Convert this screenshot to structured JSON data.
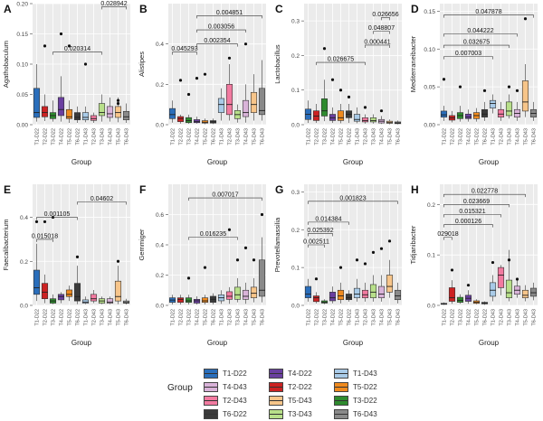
{
  "groups": [
    "T1-D22",
    "T2-D22",
    "T3-D22",
    "T4-D22",
    "T5-D22",
    "T6-D22",
    "T1-D43",
    "T2-D43",
    "T3-D43",
    "T4-D43",
    "T5-D43",
    "T6-D43"
  ],
  "group_colors": [
    "#2a6ebb",
    "#cc2222",
    "#2e8b2e",
    "#6a3fa0",
    "#ef8a1e",
    "#3a3a3a",
    "#a9cbe8",
    "#f27aa0",
    "#b8e08a",
    "#d9b3d9",
    "#f7c58a",
    "#8a8a8a"
  ],
  "legend": {
    "title": "Group",
    "items": [
      "T1-D22",
      "T4-D22",
      "T1-D43",
      "T4-D43",
      "T2-D22",
      "T5-D22",
      "T2-D43",
      "T5-D43",
      "T3-D22",
      "T6-D22",
      "T3-D43",
      "T6-D43"
    ],
    "item_colors": [
      "#2a6ebb",
      "#6a3fa0",
      "#a9cbe8",
      "#d9b3d9",
      "#cc2222",
      "#ef8a1e",
      "#f27aa0",
      "#f7c58a",
      "#2e8b2e",
      "#3a3a3a",
      "#b8e08a",
      "#8a8a8a"
    ]
  },
  "chart_data": [
    {
      "type": "box",
      "letter": "A",
      "ylabel": "Agathobaculum",
      "xlabel": "Group",
      "ylim": [
        0,
        0.2
      ],
      "yticks": [
        0,
        0.05,
        0.1,
        0.15,
        0.2
      ],
      "ytick_labels": [
        "0.00",
        "0.05",
        "0.10",
        "0.15",
        "0.20"
      ],
      "boxes": [
        [
          0.005,
          0.012,
          0.02,
          0.06,
          0.1
        ],
        [
          0.006,
          0.013,
          0.02,
          0.03,
          0.05
        ],
        [
          0.005,
          0.01,
          0.015,
          0.02,
          0.04
        ],
        [
          0.005,
          0.015,
          0.025,
          0.045,
          0.08
        ],
        [
          0.003,
          0.01,
          0.013,
          0.025,
          0.04
        ],
        [
          0.003,
          0.008,
          0.012,
          0.02,
          0.03
        ],
        [
          0.004,
          0.008,
          0.012,
          0.02,
          0.03
        ],
        [
          0.003,
          0.007,
          0.01,
          0.015,
          0.02
        ],
        [
          0.005,
          0.015,
          0.02,
          0.035,
          0.05
        ],
        [
          0.005,
          0.012,
          0.018,
          0.03,
          0.045
        ],
        [
          0.004,
          0.012,
          0.02,
          0.03,
          0.045
        ],
        [
          0.003,
          0.008,
          0.013,
          0.022,
          0.035
        ]
      ],
      "outliers": [
        [
          1,
          0.13
        ],
        [
          3,
          0.15
        ],
        [
          4,
          0.13
        ],
        [
          6,
          0.1
        ],
        [
          10,
          0.04
        ],
        [
          10,
          0.035
        ]
      ],
      "annotations": [
        {
          "label": "0.020314",
          "from": 2,
          "to": 8,
          "y": 0.12
        },
        {
          "label": "0.028942",
          "from": 8,
          "to": 11,
          "y": 0.195
        }
      ]
    },
    {
      "type": "box",
      "letter": "B",
      "ylabel": "Alistipes",
      "xlabel": "Group",
      "ylim": [
        0,
        0.6
      ],
      "yticks": [
        0,
        0.2,
        0.4
      ],
      "ytick_labels": [
        "0.0",
        "0.2",
        "0.4"
      ],
      "boxes": [
        [
          0.01,
          0.03,
          0.05,
          0.08,
          0.12
        ],
        [
          0.005,
          0.015,
          0.03,
          0.04,
          0.05
        ],
        [
          0.004,
          0.01,
          0.02,
          0.035,
          0.05
        ],
        [
          0.005,
          0.01,
          0.015,
          0.025,
          0.04
        ],
        [
          0.002,
          0.008,
          0.012,
          0.02,
          0.03
        ],
        [
          0.003,
          0.008,
          0.014,
          0.02,
          0.03
        ],
        [
          0.02,
          0.06,
          0.1,
          0.13,
          0.18
        ],
        [
          0.02,
          0.05,
          0.1,
          0.2,
          0.3
        ],
        [
          0.01,
          0.03,
          0.05,
          0.07,
          0.1
        ],
        [
          0.01,
          0.04,
          0.06,
          0.12,
          0.2
        ],
        [
          0.02,
          0.06,
          0.1,
          0.16,
          0.25
        ],
        [
          0.02,
          0.05,
          0.07,
          0.18,
          0.32
        ]
      ],
      "outliers": [
        [
          1,
          0.22
        ],
        [
          2,
          0.15
        ],
        [
          3,
          0.23
        ],
        [
          4,
          0.25
        ],
        [
          7,
          0.33
        ],
        [
          9,
          0.4
        ]
      ],
      "annotations": [
        {
          "label": "0.045293",
          "from": 0,
          "to": 3,
          "y": 0.36
        },
        {
          "label": "0.002354",
          "from": 3,
          "to": 8,
          "y": 0.4
        },
        {
          "label": "0.003056",
          "from": 3,
          "to": 9,
          "y": 0.47
        },
        {
          "label": "0.004851",
          "from": 3,
          "to": 11,
          "y": 0.54
        }
      ]
    },
    {
      "type": "box",
      "letter": "C",
      "ylabel": "Lactobacillus",
      "xlabel": "Group",
      "ylim": [
        0,
        0.35
      ],
      "yticks": [
        0,
        0.1,
        0.2,
        0.3
      ],
      "ytick_labels": [
        "0.0",
        "0.1",
        "0.2",
        "0.3"
      ],
      "boxes": [
        [
          0.005,
          0.015,
          0.03,
          0.045,
          0.07
        ],
        [
          0.005,
          0.012,
          0.025,
          0.04,
          0.06
        ],
        [
          0.01,
          0.025,
          0.04,
          0.075,
          0.13
        ],
        [
          0.005,
          0.012,
          0.02,
          0.03,
          0.05
        ],
        [
          0.004,
          0.012,
          0.02,
          0.04,
          0.06
        ],
        [
          0.005,
          0.02,
          0.03,
          0.04,
          0.06
        ],
        [
          0.004,
          0.01,
          0.015,
          0.03,
          0.05
        ],
        [
          0.003,
          0.008,
          0.012,
          0.02,
          0.03
        ],
        [
          0.003,
          0.008,
          0.012,
          0.02,
          0.03
        ],
        [
          0.002,
          0.005,
          0.01,
          0.015,
          0.025
        ],
        [
          0.001,
          0.004,
          0.006,
          0.01,
          0.015
        ],
        [
          0.001,
          0.003,
          0.005,
          0.008,
          0.012
        ]
      ],
      "outliers": [
        [
          2,
          0.22
        ],
        [
          3,
          0.13
        ],
        [
          4,
          0.1
        ],
        [
          5,
          0.08
        ],
        [
          7,
          0.05
        ],
        [
          9,
          0.04
        ]
      ],
      "annotations": [
        {
          "label": "0.026675",
          "from": 1,
          "to": 7,
          "y": 0.18
        },
        {
          "label": "0.000441",
          "from": 7,
          "to": 10,
          "y": 0.23
        },
        {
          "label": "0.048807",
          "from": 8,
          "to": 10,
          "y": 0.27
        },
        {
          "label": "0.026656",
          "from": 9,
          "to": 10,
          "y": 0.31
        }
      ]
    },
    {
      "type": "box",
      "letter": "D",
      "ylabel": "Mediterraneibacter",
      "xlabel": "Group",
      "ylim": [
        0,
        0.16
      ],
      "yticks": [
        0,
        0.05,
        0.1,
        0.15
      ],
      "ytick_labels": [
        "0.00",
        "0.05",
        "0.10",
        "0.15"
      ],
      "boxes": [
        [
          0.005,
          0.01,
          0.013,
          0.018,
          0.025
        ],
        [
          0.003,
          0.006,
          0.009,
          0.012,
          0.018
        ],
        [
          0.004,
          0.008,
          0.012,
          0.016,
          0.025
        ],
        [
          0.004,
          0.008,
          0.01,
          0.014,
          0.02
        ],
        [
          0.004,
          0.008,
          0.012,
          0.016,
          0.022
        ],
        [
          0.005,
          0.01,
          0.014,
          0.02,
          0.03
        ],
        [
          0.015,
          0.022,
          0.028,
          0.032,
          0.04
        ],
        [
          0.005,
          0.01,
          0.014,
          0.02,
          0.03
        ],
        [
          0.008,
          0.012,
          0.018,
          0.03,
          0.04
        ],
        [
          0.005,
          0.01,
          0.015,
          0.02,
          0.03
        ],
        [
          0.01,
          0.018,
          0.03,
          0.058,
          0.08
        ],
        [
          0.005,
          0.01,
          0.015,
          0.02,
          0.03
        ]
      ],
      "outliers": [
        [
          0,
          0.06
        ],
        [
          2,
          0.05
        ],
        [
          5,
          0.045
        ],
        [
          8,
          0.05
        ],
        [
          9,
          0.045
        ],
        [
          10,
          0.14
        ]
      ],
      "annotations": [
        {
          "label": "0.007003",
          "from": 0,
          "to": 6,
          "y": 0.09
        },
        {
          "label": "0.032675",
          "from": 0,
          "to": 8,
          "y": 0.105
        },
        {
          "label": "0.044222",
          "from": 0,
          "to": 9,
          "y": 0.12
        },
        {
          "label": "0.047878",
          "from": 0,
          "to": 11,
          "y": 0.145
        }
      ]
    },
    {
      "type": "box",
      "letter": "E",
      "ylabel": "Faecalibacterium",
      "xlabel": "Group",
      "ylim": [
        0,
        0.55
      ],
      "yticks": [
        0,
        0.2,
        0.4
      ],
      "ytick_labels": [
        "0.0",
        "0.2",
        "0.4"
      ],
      "boxes": [
        [
          0.02,
          0.05,
          0.08,
          0.16,
          0.28
        ],
        [
          0.01,
          0.03,
          0.06,
          0.1,
          0.14
        ],
        [
          0.005,
          0.01,
          0.02,
          0.03,
          0.05
        ],
        [
          0.01,
          0.025,
          0.04,
          0.05,
          0.06
        ],
        [
          0.02,
          0.04,
          0.05,
          0.07,
          0.09
        ],
        [
          0.005,
          0.02,
          0.04,
          0.1,
          0.18
        ],
        [
          0.005,
          0.01,
          0.015,
          0.025,
          0.04
        ],
        [
          0.01,
          0.02,
          0.03,
          0.05,
          0.07
        ],
        [
          0.005,
          0.01,
          0.02,
          0.03,
          0.04
        ],
        [
          0.005,
          0.01,
          0.015,
          0.03,
          0.04
        ],
        [
          0.005,
          0.02,
          0.04,
          0.11,
          0.18
        ],
        [
          0.004,
          0.01,
          0.012,
          0.02,
          0.03
        ]
      ],
      "outliers": [
        [
          0,
          0.38
        ],
        [
          1,
          0.38
        ],
        [
          2,
          0.4
        ],
        [
          5,
          0.22
        ],
        [
          10,
          0.2
        ]
      ],
      "annotations": [
        {
          "label": "0.015018",
          "from": 0,
          "to": 2,
          "y": 0.3
        },
        {
          "label": "0.001105",
          "from": 0,
          "to": 5,
          "y": 0.4
        },
        {
          "label": "0.04602",
          "from": 5,
          "to": 11,
          "y": 0.47
        }
      ]
    },
    {
      "type": "box",
      "letter": "F",
      "ylabel": "Gemmiger",
      "xlabel": "Group",
      "ylim": [
        0,
        0.8
      ],
      "yticks": [
        0,
        0.2,
        0.4,
        0.6
      ],
      "ytick_labels": [
        "0.0",
        "0.2",
        "0.4",
        "0.6"
      ],
      "boxes": [
        [
          0.005,
          0.02,
          0.035,
          0.05,
          0.07
        ],
        [
          0.005,
          0.02,
          0.04,
          0.05,
          0.07
        ],
        [
          0.005,
          0.02,
          0.03,
          0.05,
          0.07
        ],
        [
          0.005,
          0.015,
          0.03,
          0.04,
          0.06
        ],
        [
          0.005,
          0.02,
          0.03,
          0.05,
          0.07
        ],
        [
          0.005,
          0.02,
          0.04,
          0.06,
          0.08
        ],
        [
          0.01,
          0.03,
          0.05,
          0.07,
          0.1
        ],
        [
          0.01,
          0.04,
          0.06,
          0.09,
          0.12
        ],
        [
          0.02,
          0.04,
          0.07,
          0.12,
          0.18
        ],
        [
          0.01,
          0.04,
          0.06,
          0.1,
          0.15
        ],
        [
          0.02,
          0.05,
          0.08,
          0.12,
          0.18
        ],
        [
          0.02,
          0.06,
          0.1,
          0.3,
          0.45
        ]
      ],
      "outliers": [
        [
          2,
          0.18
        ],
        [
          4,
          0.25
        ],
        [
          7,
          0.5
        ],
        [
          8,
          0.3
        ],
        [
          9,
          0.38
        ],
        [
          10,
          0.3
        ],
        [
          11,
          0.6
        ]
      ],
      "annotations": [
        {
          "label": "0.016235",
          "from": 2,
          "to": 8,
          "y": 0.45
        },
        {
          "label": "0.007017",
          "from": 2,
          "to": 11,
          "y": 0.71
        }
      ]
    },
    {
      "type": "box",
      "letter": "G",
      "ylabel": "Prevotellamassilia",
      "xlabel": "Group",
      "ylim": [
        0,
        0.32
      ],
      "yticks": [
        0,
        0.1,
        0.2,
        0.3
      ],
      "ytick_labels": [
        "0.0",
        "0.1",
        "0.2",
        "0.3"
      ],
      "boxes": [
        [
          0.01,
          0.02,
          0.03,
          0.05,
          0.07
        ],
        [
          0.005,
          0.01,
          0.02,
          0.025,
          0.035
        ],
        [
          0.003,
          0.006,
          0.008,
          0.012,
          0.016
        ],
        [
          0.005,
          0.012,
          0.02,
          0.035,
          0.05
        ],
        [
          0.005,
          0.015,
          0.025,
          0.04,
          0.06
        ],
        [
          0.01,
          0.015,
          0.02,
          0.03,
          0.04
        ],
        [
          0.01,
          0.02,
          0.03,
          0.045,
          0.07
        ],
        [
          0.01,
          0.02,
          0.028,
          0.04,
          0.06
        ],
        [
          0.01,
          0.02,
          0.035,
          0.055,
          0.08
        ],
        [
          0.01,
          0.02,
          0.03,
          0.05,
          0.08
        ],
        [
          0.02,
          0.035,
          0.05,
          0.08,
          0.12
        ],
        [
          0.005,
          0.015,
          0.025,
          0.04,
          0.06
        ]
      ],
      "outliers": [
        [
          1,
          0.07
        ],
        [
          4,
          0.1
        ],
        [
          6,
          0.12
        ],
        [
          7,
          0.11
        ],
        [
          8,
          0.14
        ],
        [
          9,
          0.15
        ],
        [
          10,
          0.17
        ]
      ],
      "annotations": [
        {
          "label": "0.002511",
          "from": 0,
          "to": 2,
          "y": 0.16
        },
        {
          "label": "0.025392",
          "from": 0,
          "to": 3,
          "y": 0.19
        },
        {
          "label": "0.014384",
          "from": 0,
          "to": 5,
          "y": 0.22
        },
        {
          "label": "0.001823",
          "from": 0,
          "to": 11,
          "y": 0.275
        }
      ]
    },
    {
      "type": "box",
      "letter": "H",
      "ylabel": "Tidjanibacter",
      "xlabel": "Group",
      "ylim": [
        0,
        0.24
      ],
      "yticks": [
        0,
        0.1,
        0.2
      ],
      "ytick_labels": [
        "0.0",
        "0.1",
        "0.2"
      ],
      "boxes": [
        [
          0.001,
          0.002,
          0.003,
          0.004,
          0.006
        ],
        [
          0.003,
          0.008,
          0.015,
          0.035,
          0.05
        ],
        [
          0.003,
          0.006,
          0.01,
          0.016,
          0.022
        ],
        [
          0.003,
          0.008,
          0.014,
          0.02,
          0.03
        ],
        [
          0.002,
          0.004,
          0.006,
          0.009,
          0.012
        ],
        [
          0.001,
          0.003,
          0.004,
          0.006,
          0.008
        ],
        [
          0.008,
          0.018,
          0.03,
          0.045,
          0.06
        ],
        [
          0.02,
          0.035,
          0.06,
          0.075,
          0.08
        ],
        [
          0.008,
          0.015,
          0.025,
          0.05,
          0.11
        ],
        [
          0.015,
          0.022,
          0.03,
          0.038,
          0.05
        ],
        [
          0.008,
          0.015,
          0.02,
          0.03,
          0.04
        ],
        [
          0.01,
          0.018,
          0.025,
          0.034,
          0.045
        ]
      ],
      "outliers": [
        [
          1,
          0.07
        ],
        [
          3,
          0.04
        ],
        [
          6,
          0.085
        ],
        [
          8,
          0.09
        ],
        [
          9,
          0.052
        ]
      ],
      "annotations": [
        {
          "label": "029018",
          "from": 0,
          "to": 1,
          "y": 0.135
        },
        {
          "label": "0.000126",
          "from": 0,
          "to": 6,
          "y": 0.16
        },
        {
          "label": "0.015321",
          "from": 0,
          "to": 7,
          "y": 0.18
        },
        {
          "label": "0.023669",
          "from": 0,
          "to": 8,
          "y": 0.2
        },
        {
          "label": "0.022778",
          "from": 0,
          "to": 10,
          "y": 0.22
        }
      ]
    }
  ]
}
